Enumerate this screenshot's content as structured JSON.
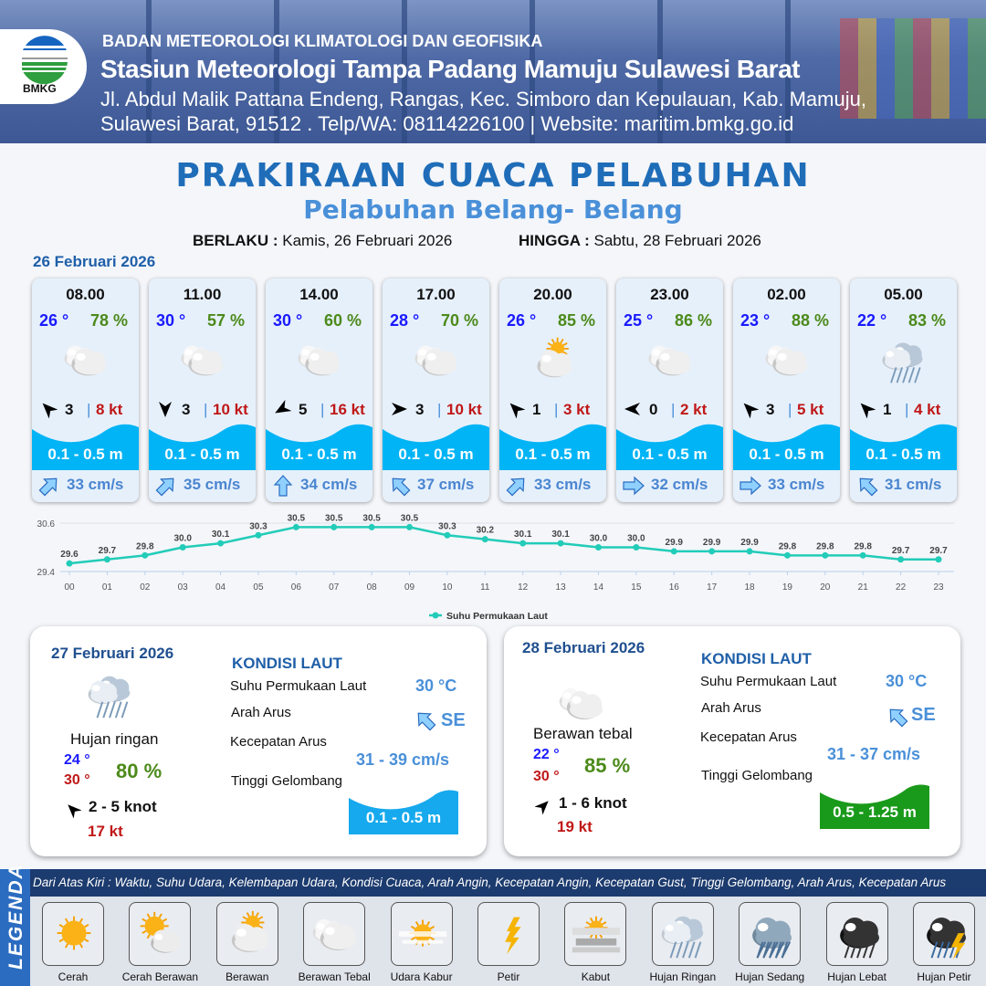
{
  "header": {
    "logo_text": "BMKG",
    "agency": "BADAN METEOROLOGI KLIMATOLOGI DAN GEOFISIKA",
    "station": "Stasiun Meteorologi Tampa Padang Mamuju Sulawesi Barat",
    "address_line1": "Jl. Abdul Malik Pattana Endeng, Rangas, Kec. Simboro dan Kepulauan, Kab. Mamuju,",
    "address_line2": "Sulawesi Barat, 91512 . Telp/WA: 08114226100 | Website: maritim.bmkg.go.id"
  },
  "title": "PRAKIRAAN CUACA PELABUHAN",
  "subtitle": "Pelabuhan Belang- Belang",
  "validity": {
    "from_label": "BERLAKU :",
    "from": "Kamis, 26 Februari 2026",
    "to_label": "HINGGA :",
    "to": "Sabtu, 28 Februari 2026"
  },
  "day1": {
    "date": "26 Februari 2026",
    "forecasts": [
      {
        "time": "08.00",
        "temp": "26 °",
        "humidity": "78 %",
        "weather": "berawan-tebal",
        "wind_dir_deg": 315,
        "wind_speed": "3",
        "gust": "8 kt",
        "wave": "0.1 - 0.5 m",
        "current_dir_deg": 225,
        "current_speed": "33 cm/s"
      },
      {
        "time": "11.00",
        "temp": "30 °",
        "humidity": "57 %",
        "weather": "berawan-tebal",
        "wind_dir_deg": 180,
        "wind_speed": "3",
        "gust": "10 kt",
        "wave": "0.1 - 0.5 m",
        "current_dir_deg": 225,
        "current_speed": "35 cm/s"
      },
      {
        "time": "14.00",
        "temp": "30 °",
        "humidity": "60 %",
        "weather": "berawan-tebal",
        "wind_dir_deg": 240,
        "wind_speed": "5",
        "gust": "16 kt",
        "wave": "0.1 - 0.5 m",
        "current_dir_deg": 180,
        "current_speed": "34 cm/s"
      },
      {
        "time": "17.00",
        "temp": "28 °",
        "humidity": "70 %",
        "weather": "berawan-tebal",
        "wind_dir_deg": 90,
        "wind_speed": "3",
        "gust": "10 kt",
        "wave": "0.1 - 0.5 m",
        "current_dir_deg": 135,
        "current_speed": "37 cm/s"
      },
      {
        "time": "20.00",
        "temp": "26 °",
        "humidity": "85 %",
        "weather": "berawan",
        "wind_dir_deg": 315,
        "wind_speed": "1",
        "gust": "3 kt",
        "wave": "0.1 - 0.5 m",
        "current_dir_deg": 225,
        "current_speed": "33 cm/s"
      },
      {
        "time": "23.00",
        "temp": "25 °",
        "humidity": "86 %",
        "weather": "berawan-tebal",
        "wind_dir_deg": 270,
        "wind_speed": "0",
        "gust": "2 kt",
        "wave": "0.1 - 0.5 m",
        "current_dir_deg": 270,
        "current_speed": "32 cm/s"
      },
      {
        "time": "02.00",
        "temp": "23 °",
        "humidity": "88 %",
        "weather": "berawan-tebal",
        "wind_dir_deg": 315,
        "wind_speed": "3",
        "gust": "5 kt",
        "wave": "0.1 - 0.5 m",
        "current_dir_deg": 270,
        "current_speed": "33 cm/s"
      },
      {
        "time": "05.00",
        "temp": "22 °",
        "humidity": "83 %",
        "weather": "hujan-ringan",
        "wind_dir_deg": 315,
        "wind_speed": "1",
        "gust": "4 kt",
        "wave": "0.1 - 0.5 m",
        "current_dir_deg": 135,
        "current_speed": "31 cm/s"
      }
    ]
  },
  "chart_data": {
    "type": "line",
    "x": [
      "00",
      "01",
      "02",
      "03",
      "04",
      "05",
      "06",
      "07",
      "08",
      "09",
      "10",
      "11",
      "12",
      "13",
      "14",
      "15",
      "16",
      "17",
      "18",
      "19",
      "20",
      "21",
      "22",
      "23"
    ],
    "series": [
      {
        "name": "Suhu Permukaan Laut",
        "values": [
          29.6,
          29.7,
          29.8,
          30.0,
          30.1,
          30.3,
          30.5,
          30.5,
          30.5,
          30.5,
          30.3,
          30.2,
          30.1,
          30.1,
          30.0,
          30.0,
          29.9,
          29.9,
          29.9,
          29.8,
          29.8,
          29.8,
          29.7,
          29.7
        ],
        "color": "#22ccb8"
      }
    ],
    "y_ticks": [
      "30.6",
      "29.4"
    ],
    "ylim": [
      29.4,
      30.6
    ],
    "grid": true,
    "data_labels": true,
    "legend": "bottom-center"
  },
  "panels": [
    {
      "date": "27 Februari 2026",
      "weather": "hujan-ringan",
      "weather_label": "Hujan ringan",
      "temp_min": "24 °",
      "temp_max": "30 °",
      "humidity": "80 %",
      "wind_dir_deg": 315,
      "wind": "2  - 5 knot",
      "gust": "17 kt",
      "kondisi_title": "KONDISI LAUT",
      "sst_label": "Suhu Permukaan Laut",
      "sst": "30 °C",
      "dir_label": "Arah Arus",
      "dir": "SE",
      "dir_deg": 135,
      "speed_label": "Kecepatan Arus",
      "speed": "31  - 39 cm/s",
      "wave_label": "Tinggi Gelombang",
      "wave": "0.1 - 0.5 m",
      "wave_color": "#16a9ee"
    },
    {
      "date": "28 Februari 2026",
      "weather": "berawan-tebal",
      "weather_label": "Berawan tebal",
      "temp_min": "22 °",
      "temp_max": "30 °",
      "humidity": "85 %",
      "wind_dir_deg": 45,
      "wind": "1  - 6 knot",
      "gust": "19 kt",
      "kondisi_title": "KONDISI LAUT",
      "sst_label": "Suhu Permukaan Laut",
      "sst": "30 °C",
      "dir_label": "Arah Arus",
      "dir": "SE",
      "dir_deg": 135,
      "speed_label": "Kecepatan Arus",
      "speed": "31  - 37 cm/s",
      "wave_label": "Tinggi Gelombang",
      "wave": "0.5 - 1.25 m",
      "wave_color": "#1a9a1a"
    }
  ],
  "legend": {
    "title": "LEGENDA",
    "description": "Dari Atas Kiri : Waktu, Suhu Udara, Kelembapan Udara, Kondisi Cuaca, Arah Angin, Kecepatan Angin, Kecepatan Gust, Tinggi Gelombang, Arah Arus, Kecepatan Arus",
    "items": [
      {
        "label": "Cerah",
        "icon": "cerah"
      },
      {
        "label": "Cerah Berawan",
        "icon": "cerah-berawan"
      },
      {
        "label": "Berawan",
        "icon": "berawan"
      },
      {
        "label": "Berawan Tebal",
        "icon": "berawan-tebal"
      },
      {
        "label": "Udara Kabur",
        "icon": "udara-kabur"
      },
      {
        "label": "Petir",
        "icon": "petir"
      },
      {
        "label": "Kabut",
        "icon": "kabut"
      },
      {
        "label": "Hujan Ringan",
        "icon": "hujan-ringan"
      },
      {
        "label": "Hujan Sedang",
        "icon": "hujan-sedang"
      },
      {
        "label": "Hujan Lebat",
        "icon": "hujan-lebat"
      },
      {
        "label": "Hujan Petir",
        "icon": "hujan-petir"
      }
    ]
  }
}
